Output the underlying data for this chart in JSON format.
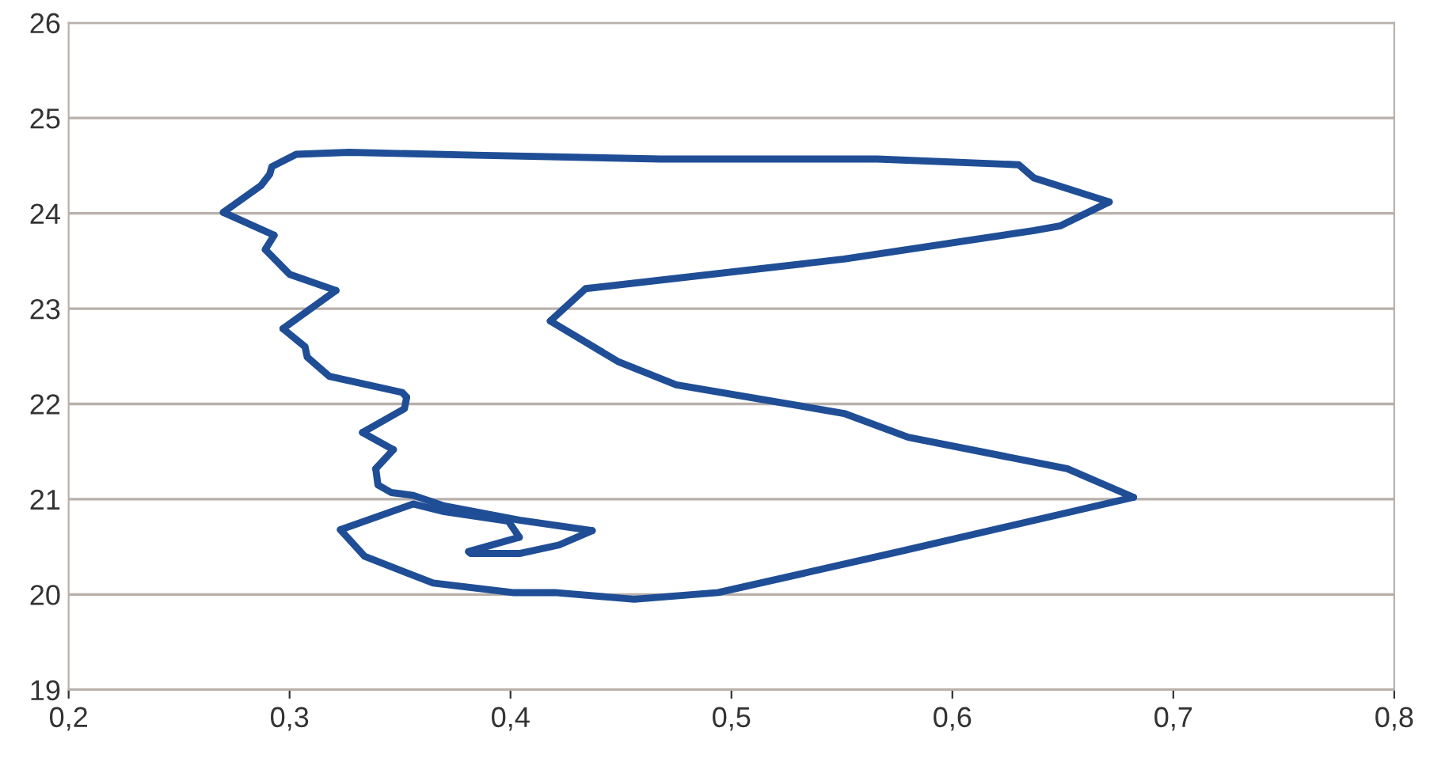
{
  "chart_data": {
    "type": "line",
    "grid": "y",
    "marker": "none",
    "line_style": "solid",
    "xlim": [
      0.2,
      0.8
    ],
    "xticks": [
      {
        "value": 0.2,
        "label": "0,2"
      },
      {
        "value": 0.3,
        "label": "0,3"
      },
      {
        "value": 0.4,
        "label": "0,4"
      },
      {
        "value": 0.5,
        "label": "0,5"
      },
      {
        "value": 0.6,
        "label": "0,6"
      },
      {
        "value": 0.7,
        "label": "0,7"
      },
      {
        "value": 0.8,
        "label": "0,8"
      }
    ],
    "ylim": [
      19,
      26
    ],
    "yticks": [
      19,
      20,
      21,
      22,
      23,
      24,
      25,
      26
    ],
    "series": [
      {
        "color": "#1f4e96",
        "x": [
          0.323,
          0.334,
          0.365,
          0.401,
          0.42,
          0.456,
          0.494,
          0.576,
          0.682
        ],
        "values": [
          20.68,
          20.4,
          20.12,
          20.02,
          20.02,
          19.95,
          20.02,
          20.45,
          21.02
        ]
      },
      {
        "color": "#1f4e96",
        "x": [
          0.682,
          0.652,
          0.58,
          0.551,
          0.475,
          0.449,
          0.418
        ],
        "values": [
          21.02,
          21.32,
          21.65,
          21.9,
          22.2,
          22.44,
          22.87
        ]
      },
      {
        "color": "#1f4e96",
        "x": [
          0.418,
          0.434,
          0.551,
          0.637,
          0.649,
          0.671
        ],
        "values": [
          22.87,
          23.21,
          23.52,
          23.82,
          23.87,
          24.12
        ]
      },
      {
        "color": "#1f4e96",
        "x": [
          0.671,
          0.637,
          0.63,
          0.566,
          0.468,
          0.384,
          0.327,
          0.303,
          0.292,
          0.291,
          0.287,
          0.27
        ],
        "values": [
          24.12,
          24.37,
          24.51,
          24.57,
          24.57,
          24.61,
          24.64,
          24.62,
          24.49,
          24.41,
          24.29,
          24.01
        ]
      },
      {
        "color": "#1f4e96",
        "x": [
          0.27,
          0.293
        ],
        "values": [
          24.01,
          23.77
        ]
      },
      {
        "color": "#1f4e96",
        "x": [
          0.293,
          0.289
        ],
        "values": [
          23.77,
          23.62
        ]
      },
      {
        "color": "#1f4e96",
        "x": [
          0.289,
          0.3,
          0.321
        ],
        "values": [
          23.62,
          23.36,
          23.19
        ]
      },
      {
        "color": "#1f4e96",
        "x": [
          0.321,
          0.297
        ],
        "values": [
          23.19,
          22.79
        ]
      },
      {
        "color": "#1f4e96",
        "x": [
          0.297,
          0.307,
          0.308,
          0.318,
          0.351,
          0.353
        ],
        "values": [
          22.79,
          22.6,
          22.49,
          22.29,
          22.12,
          22.07
        ]
      },
      {
        "color": "#1f4e96",
        "x": [
          0.353,
          0.352,
          0.333
        ],
        "values": [
          22.07,
          21.95,
          21.7
        ]
      },
      {
        "color": "#1f4e96",
        "x": [
          0.333,
          0.347
        ],
        "values": [
          21.7,
          21.52
        ]
      },
      {
        "color": "#1f4e96",
        "x": [
          0.347,
          0.339
        ],
        "values": [
          21.52,
          21.32
        ]
      },
      {
        "color": "#1f4e96",
        "x": [
          0.339,
          0.34,
          0.346,
          0.356,
          0.37,
          0.404,
          0.437
        ],
        "values": [
          21.32,
          21.15,
          21.07,
          21.04,
          20.93,
          20.78,
          20.67
        ]
      },
      {
        "color": "#1f4e96",
        "x": [
          0.437,
          0.422,
          0.404,
          0.382,
          0.381
        ],
        "values": [
          20.67,
          20.52,
          20.43,
          20.43,
          20.45
        ]
      },
      {
        "color": "#1f4e96",
        "x": [
          0.381,
          0.404
        ],
        "values": [
          20.45,
          20.6
        ]
      },
      {
        "color": "#1f4e96",
        "x": [
          0.404,
          0.399,
          0.37,
          0.356,
          0.323
        ],
        "values": [
          20.6,
          20.77,
          20.87,
          20.95,
          20.68
        ]
      }
    ]
  }
}
